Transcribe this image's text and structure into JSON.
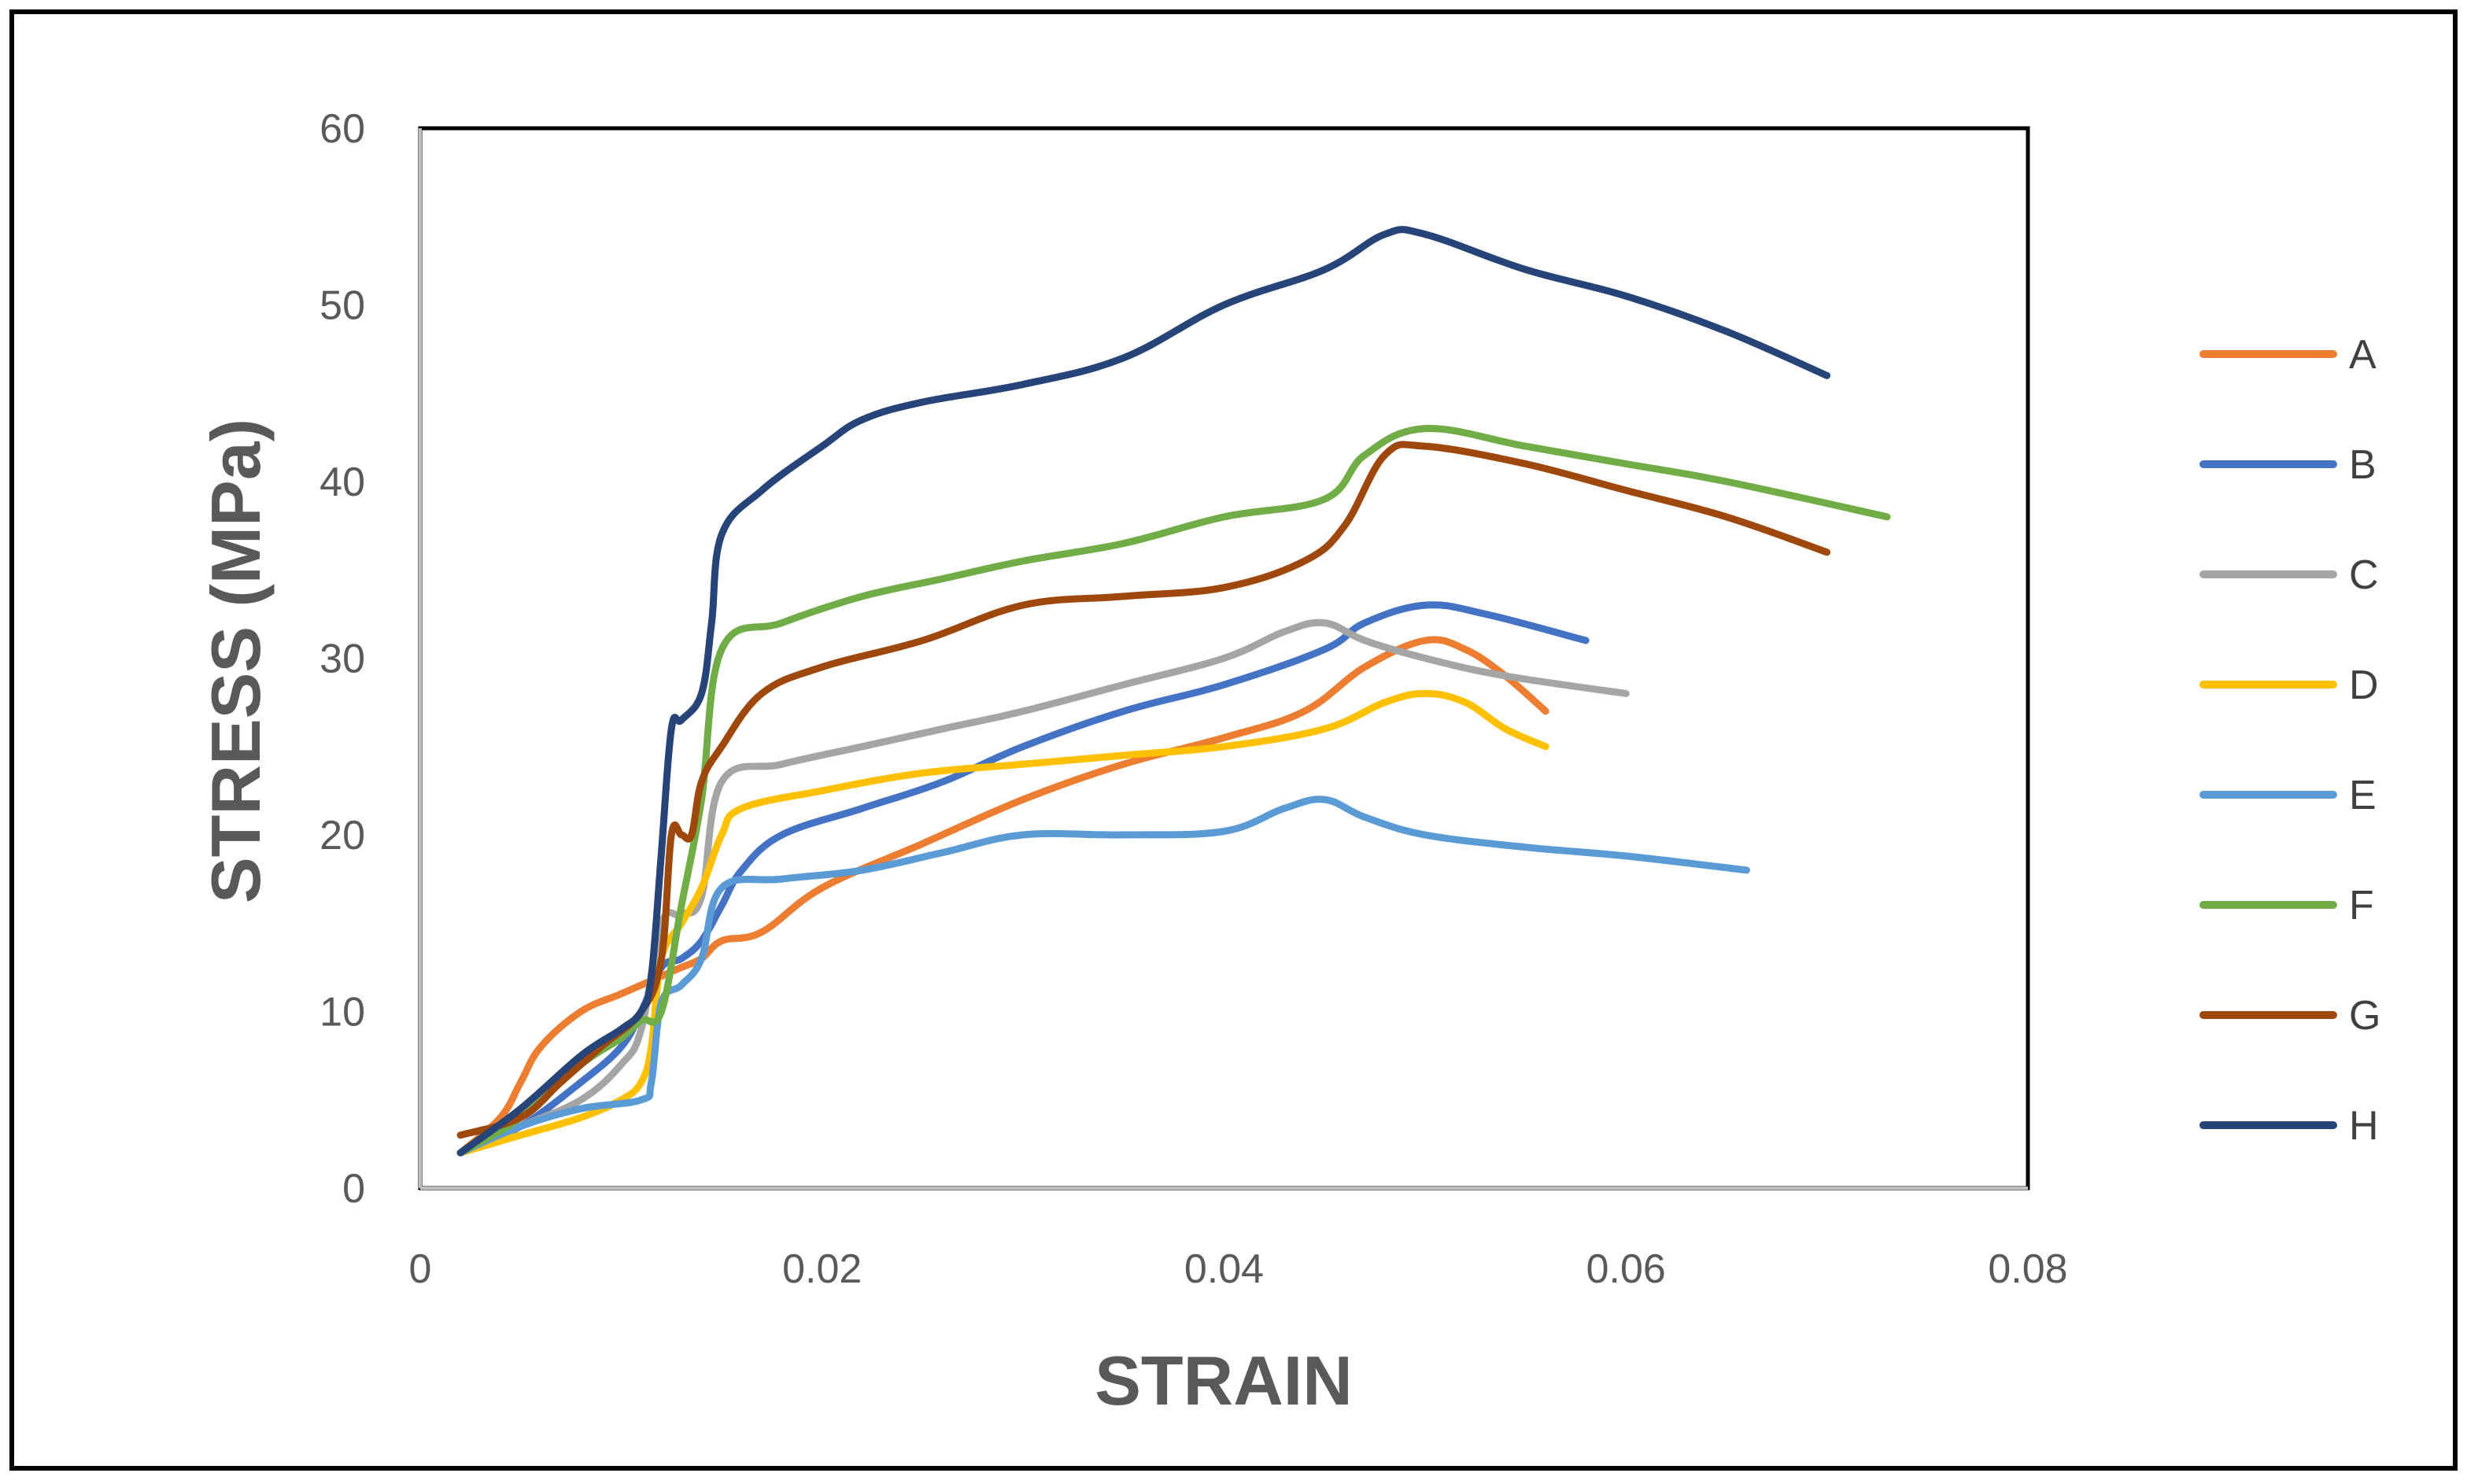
{
  "chart_data": {
    "type": "line",
    "title": "",
    "xlabel": "STRAIN",
    "ylabel": "STRESS  (MPa)",
    "xlim": [
      0,
      0.08
    ],
    "ylim": [
      0,
      60
    ],
    "xticks": [
      0,
      0.02,
      0.04,
      0.06,
      0.08
    ],
    "xtick_labels": [
      "0",
      "0.02",
      "0.04",
      "0.06",
      "0.08"
    ],
    "yticks": [
      0,
      10,
      20,
      30,
      40,
      50,
      60
    ],
    "ytick_labels": [
      "0",
      "10",
      "20",
      "30",
      "40",
      "50",
      "60"
    ],
    "grid": false,
    "legend_position": "right",
    "series": [
      {
        "name": "A",
        "color": "#ED7D31",
        "points": [
          [
            0.002,
            2
          ],
          [
            0.004,
            4
          ],
          [
            0.005,
            6
          ],
          [
            0.006,
            8
          ],
          [
            0.008,
            10
          ],
          [
            0.01,
            11
          ],
          [
            0.012,
            12
          ],
          [
            0.013,
            12.5
          ],
          [
            0.014,
            13
          ],
          [
            0.015,
            14
          ],
          [
            0.017,
            14.5
          ],
          [
            0.02,
            17
          ],
          [
            0.025,
            19.5
          ],
          [
            0.03,
            22
          ],
          [
            0.035,
            24
          ],
          [
            0.04,
            25.5
          ],
          [
            0.044,
            27
          ],
          [
            0.047,
            29.5
          ],
          [
            0.05,
            31
          ],
          [
            0.052,
            30.5
          ],
          [
            0.054,
            29
          ],
          [
            0.056,
            27
          ]
        ]
      },
      {
        "name": "B",
        "color": "#4472C4",
        "points": [
          [
            0.002,
            2
          ],
          [
            0.005,
            3.5
          ],
          [
            0.008,
            6
          ],
          [
            0.01,
            8
          ],
          [
            0.011,
            10
          ],
          [
            0.012,
            12.5
          ],
          [
            0.013,
            13
          ],
          [
            0.014,
            14
          ],
          [
            0.015,
            16
          ],
          [
            0.016,
            18
          ],
          [
            0.018,
            20
          ],
          [
            0.022,
            21.5
          ],
          [
            0.026,
            23
          ],
          [
            0.03,
            25
          ],
          [
            0.035,
            27
          ],
          [
            0.04,
            28.5
          ],
          [
            0.045,
            30.5
          ],
          [
            0.047,
            32
          ],
          [
            0.05,
            33
          ],
          [
            0.053,
            32.5
          ],
          [
            0.058,
            31
          ]
        ]
      },
      {
        "name": "C",
        "color": "#A5A5A5",
        "points": [
          [
            0.002,
            2
          ],
          [
            0.005,
            3.5
          ],
          [
            0.008,
            5
          ],
          [
            0.01,
            7
          ],
          [
            0.011,
            9
          ],
          [
            0.012,
            15
          ],
          [
            0.013,
            15.5
          ],
          [
            0.014,
            16.5
          ],
          [
            0.015,
            23
          ],
          [
            0.018,
            24
          ],
          [
            0.022,
            25
          ],
          [
            0.026,
            26
          ],
          [
            0.03,
            27
          ],
          [
            0.035,
            28.5
          ],
          [
            0.04,
            30
          ],
          [
            0.043,
            31.5
          ],
          [
            0.045,
            32
          ],
          [
            0.047,
            31
          ],
          [
            0.05,
            30
          ],
          [
            0.054,
            29
          ],
          [
            0.06,
            28
          ]
        ]
      },
      {
        "name": "D",
        "color": "#FFC000",
        "points": [
          [
            0.002,
            2
          ],
          [
            0.005,
            3
          ],
          [
            0.008,
            4
          ],
          [
            0.01,
            5
          ],
          [
            0.011,
            6
          ],
          [
            0.0115,
            8
          ],
          [
            0.012,
            13
          ],
          [
            0.013,
            15
          ],
          [
            0.014,
            17
          ],
          [
            0.015,
            20
          ],
          [
            0.016,
            21.5
          ],
          [
            0.02,
            22.5
          ],
          [
            0.025,
            23.5
          ],
          [
            0.03,
            24
          ],
          [
            0.035,
            24.5
          ],
          [
            0.04,
            25
          ],
          [
            0.045,
            26
          ],
          [
            0.048,
            27.5
          ],
          [
            0.05,
            28
          ],
          [
            0.052,
            27.5
          ],
          [
            0.054,
            26
          ],
          [
            0.056,
            25
          ]
        ]
      },
      {
        "name": "E",
        "color": "#5B9BD5",
        "points": [
          [
            0.002,
            2
          ],
          [
            0.005,
            3.5
          ],
          [
            0.008,
            4.5
          ],
          [
            0.011,
            5
          ],
          [
            0.0115,
            6
          ],
          [
            0.012,
            10.5
          ],
          [
            0.013,
            11.5
          ],
          [
            0.014,
            13
          ],
          [
            0.015,
            17
          ],
          [
            0.018,
            17.5
          ],
          [
            0.022,
            18
          ],
          [
            0.026,
            19
          ],
          [
            0.03,
            20
          ],
          [
            0.035,
            20
          ],
          [
            0.04,
            20.2
          ],
          [
            0.043,
            21.5
          ],
          [
            0.045,
            22
          ],
          [
            0.047,
            21
          ],
          [
            0.05,
            20
          ],
          [
            0.055,
            19.3
          ],
          [
            0.06,
            18.8
          ],
          [
            0.066,
            18
          ]
        ]
      },
      {
        "name": "F",
        "color": "#70AD47",
        "points": [
          [
            0.002,
            2
          ],
          [
            0.005,
            4
          ],
          [
            0.008,
            7
          ],
          [
            0.01,
            8.5
          ],
          [
            0.011,
            9.5
          ],
          [
            0.012,
            10
          ],
          [
            0.013,
            16
          ],
          [
            0.014,
            22
          ],
          [
            0.015,
            30.5
          ],
          [
            0.018,
            32
          ],
          [
            0.022,
            33.5
          ],
          [
            0.026,
            34.5
          ],
          [
            0.03,
            35.5
          ],
          [
            0.035,
            36.5
          ],
          [
            0.04,
            38
          ],
          [
            0.045,
            39
          ],
          [
            0.047,
            41.5
          ],
          [
            0.05,
            43
          ],
          [
            0.055,
            42
          ],
          [
            0.06,
            41
          ],
          [
            0.065,
            40
          ],
          [
            0.073,
            38
          ]
        ]
      },
      {
        "name": "G",
        "color": "#9E480E",
        "points": [
          [
            0.002,
            3
          ],
          [
            0.005,
            4
          ],
          [
            0.007,
            6
          ],
          [
            0.009,
            8
          ],
          [
            0.011,
            10
          ],
          [
            0.012,
            13
          ],
          [
            0.0125,
            20
          ],
          [
            0.013,
            20
          ],
          [
            0.0135,
            20
          ],
          [
            0.014,
            23
          ],
          [
            0.015,
            25
          ],
          [
            0.017,
            28
          ],
          [
            0.02,
            29.5
          ],
          [
            0.025,
            31
          ],
          [
            0.03,
            33
          ],
          [
            0.035,
            33.5
          ],
          [
            0.04,
            34
          ],
          [
            0.044,
            35.5
          ],
          [
            0.046,
            37.5
          ],
          [
            0.048,
            41.5
          ],
          [
            0.05,
            42
          ],
          [
            0.055,
            41
          ],
          [
            0.06,
            39.5
          ],
          [
            0.065,
            38
          ],
          [
            0.07,
            36
          ]
        ]
      },
      {
        "name": "H",
        "color": "#264478",
        "points": [
          [
            0.002,
            2
          ],
          [
            0.005,
            4.5
          ],
          [
            0.008,
            7.5
          ],
          [
            0.01,
            9
          ],
          [
            0.011,
            10
          ],
          [
            0.0115,
            12
          ],
          [
            0.012,
            19
          ],
          [
            0.0125,
            26
          ],
          [
            0.013,
            26.5
          ],
          [
            0.014,
            28
          ],
          [
            0.0145,
            32
          ],
          [
            0.015,
            37
          ],
          [
            0.017,
            39.5
          ],
          [
            0.02,
            42
          ],
          [
            0.022,
            43.5
          ],
          [
            0.025,
            44.5
          ],
          [
            0.03,
            45.5
          ],
          [
            0.035,
            47
          ],
          [
            0.04,
            50
          ],
          [
            0.045,
            52
          ],
          [
            0.048,
            54
          ],
          [
            0.05,
            54
          ],
          [
            0.055,
            52
          ],
          [
            0.06,
            50.5
          ],
          [
            0.065,
            48.5
          ],
          [
            0.07,
            46
          ]
        ]
      }
    ]
  }
}
